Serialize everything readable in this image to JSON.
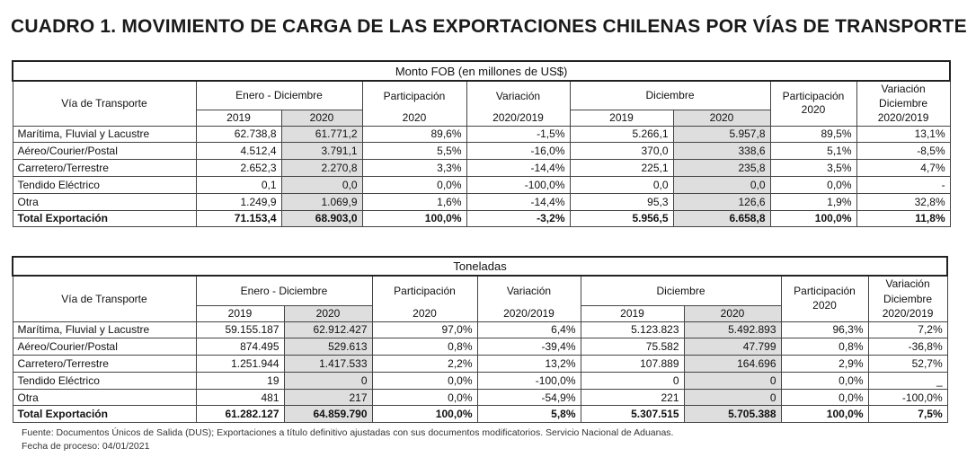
{
  "title": "CUADRO 1. MOVIMIENTO DE CARGA DE LAS EXPORTACIONES CHILENAS POR VÍAS DE TRANSPORTE",
  "tables": [
    {
      "band": "Monto FOB (en millones de US$)",
      "headers": {
        "via": "Vía de Transporte",
        "enero_dic": "Enero - Diciembre",
        "y2019": "2019",
        "y2020": "2020",
        "participacion": "Participación",
        "part_year": "2020",
        "variacion": "Variación",
        "var_years": "2020/2019",
        "diciembre": "Diciembre",
        "d2019": "2019",
        "d2020": "2020",
        "participacion2": "Participación",
        "part2_year": "2020",
        "var_dic_1": "Variación",
        "var_dic_2": "Diciembre",
        "var_dic_3": "2020/2019"
      },
      "rows": [
        [
          "Marítima, Fluvial y Lacustre",
          "62.738,8",
          "61.771,2",
          "89,6%",
          "-1,5%",
          "5.266,1",
          "5.957,8",
          "89,5%",
          "13,1%"
        ],
        [
          "Aéreo/Courier/Postal",
          "4.512,4",
          "3.791,1",
          "5,5%",
          "-16,0%",
          "370,0",
          "338,6",
          "5,1%",
          "-8,5%"
        ],
        [
          "Carretero/Terrestre",
          "2.652,3",
          "2.270,8",
          "3,3%",
          "-14,4%",
          "225,1",
          "235,8",
          "3,5%",
          "4,7%"
        ],
        [
          "Tendido Eléctrico",
          "0,1",
          "0,0",
          "0,0%",
          "-100,0%",
          "0,0",
          "0,0",
          "0,0%",
          "-"
        ],
        [
          "Otra",
          "1.249,9",
          "1.069,9",
          "1,6%",
          "-14,4%",
          "95,3",
          "126,6",
          "1,9%",
          "32,8%"
        ],
        [
          "Total Exportación",
          "71.153,4",
          "68.903,0",
          "100,0%",
          "-3,2%",
          "5.956,5",
          "6.658,8",
          "100,0%",
          "11,8%"
        ]
      ]
    },
    {
      "band": "Toneladas",
      "headers": {
        "via": "Vía de Transporte",
        "enero_dic": "Enero - Diciembre",
        "y2019": "2019",
        "y2020": "2020",
        "participacion": "Participación",
        "part_year": "2020",
        "variacion": "Variación",
        "var_years": "2020/2019",
        "diciembre": "Diciembre",
        "d2019": "2019",
        "d2020": "2020",
        "participacion2": "Participación",
        "part2_year": "2020",
        "var_dic_1": "Variación",
        "var_dic_2": "Diciembre",
        "var_dic_3": "2020/2019"
      },
      "rows": [
        [
          "Marítima, Fluvial y Lacustre",
          "59.155.187",
          "62.912.427",
          "97,0%",
          "6,4%",
          "5.123.823",
          "5.492.893",
          "96,3%",
          "7,2%"
        ],
        [
          "Aéreo/Courier/Postal",
          "874.495",
          "529.613",
          "0,8%",
          "-39,4%",
          "75.582",
          "47.799",
          "0,8%",
          "-36,8%"
        ],
        [
          "Carretero/Terrestre",
          "1.251.944",
          "1.417.533",
          "2,2%",
          "13,2%",
          "107.889",
          "164.696",
          "2,9%",
          "52,7%"
        ],
        [
          "Tendido Eléctrico",
          "19",
          "0",
          "0,0%",
          "-100,0%",
          "0",
          "0",
          "0,0%",
          "_"
        ],
        [
          "Otra",
          "481",
          "217",
          "0,0%",
          "-54,9%",
          "221",
          "0",
          "0,0%",
          "-100,0%"
        ],
        [
          "Total Exportación",
          "61.282.127",
          "64.859.790",
          "100,0%",
          "5,8%",
          "5.307.515",
          "5.705.388",
          "100,0%",
          "7,5%"
        ]
      ]
    }
  ],
  "footer": {
    "source": "Fuente: Documentos Únicos de Salida (DUS); Exportaciones a título definitivo ajustadas con sus documentos modificatorios. Servicio Nacional de Aduanas.",
    "date": "Fecha de proceso: 04/01/2021"
  }
}
